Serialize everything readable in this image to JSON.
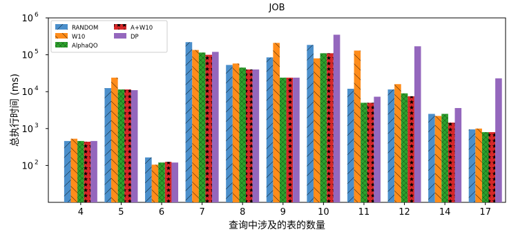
{
  "chart_data": {
    "type": "bar",
    "title": "JOB",
    "xlabel": "查询中涉及的表的数量",
    "ylabel": "总执行时间 (ms)",
    "yscale": "log",
    "ylim": [
      10,
      1000000
    ],
    "yticks": [
      {
        "base": "10",
        "exp": "2",
        "value": 100
      },
      {
        "base": "10",
        "exp": "3",
        "value": 1000
      },
      {
        "base": "10",
        "exp": "4",
        "value": 10000
      },
      {
        "base": "10",
        "exp": "5",
        "value": 100000
      },
      {
        "base": "10",
        "exp": "6",
        "value": 1000000
      }
    ],
    "categories": [
      "4",
      "5",
      "6",
      "7",
      "8",
      "9",
      "10",
      "11",
      "12",
      "14",
      "17"
    ],
    "legend": {
      "placement": "top-left",
      "columns": 2
    },
    "series": [
      {
        "name": "RANDOM",
        "color": "#4b8fcb",
        "pattern": "diagonal-hatch",
        "values": [
          460,
          12500,
          165,
          220000,
          53000,
          85000,
          185000,
          12000,
          11500,
          2500,
          950
        ]
      },
      {
        "name": "W10",
        "color": "#ff8c1a",
        "pattern": "backslash-hatch",
        "values": [
          530,
          24000,
          105,
          135000,
          58000,
          210000,
          80000,
          130000,
          16000,
          2200,
          1000
        ]
      },
      {
        "name": "AlphaQO",
        "color": "#2ca02c",
        "pattern": "cross-hatch",
        "values": [
          460,
          11500,
          120,
          115000,
          45000,
          24000,
          110000,
          5000,
          9000,
          2500,
          800
        ]
      },
      {
        "name": "A+W10",
        "color": "#d62728",
        "pattern": "star",
        "values": [
          440,
          11500,
          125,
          100000,
          40000,
          24000,
          110000,
          5000,
          7500,
          1450,
          800
        ]
      },
      {
        "name": "DP",
        "color": "#9467bd",
        "pattern": "solid",
        "values": [
          460,
          11000,
          120,
          120000,
          40000,
          24000,
          350000,
          7300,
          170000,
          3600,
          23000
        ]
      }
    ]
  }
}
